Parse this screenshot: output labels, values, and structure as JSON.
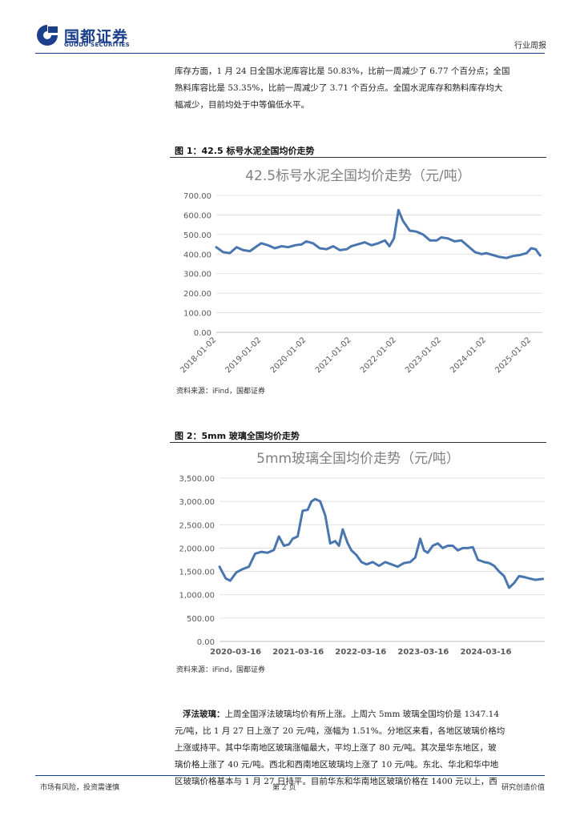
{
  "header": {
    "logo_cn": "国都证券",
    "logo_en": "GUODU SECURITIES",
    "doc_type": "行业周报"
  },
  "intro": {
    "lines": [
      "库存方面，1 月 24 日全国水泥库容比是 50.83%，比前一周减少了 6.77 个百分点；全国",
      "熟料库容比是 53.35%，比前一周减少了 3.71 个百分点。全国水泥库存和熟料库存均大",
      "幅减少，目前均处于中等偏低水平。"
    ]
  },
  "figure1": {
    "caption": "图 1：42.5 标号水泥全国均价走势",
    "source": "资料来源：iFind，国都证券"
  },
  "figure2": {
    "caption": "图 2：5mm 玻璃全国均价走势",
    "source": "资料来源：iFind，国都证券"
  },
  "glass_para": {
    "lead": "浮法玻璃：",
    "lines": [
      "上周全国浮法玻璃均价有所上涨。上周六 5mm 玻璃全国均价是 1347.14",
      "元/吨，比 1 月 27 日上涨了 20 元/吨，涨幅为 1.51%。分地区来看，各地区玻璃价格均",
      "上涨或持平。其中华南地区玻璃涨幅最大，平均上涨了 80 元/吨。其次是华东地区，玻",
      "璃价格上涨了 40 元/吨。西北和西南地区玻璃均上涨了 10 元/吨。东北、华北和华中地",
      "区玻璃价格基本与 1 月 27 日持平。目前华东和华南地区玻璃价格在 1400 元以上，西"
    ]
  },
  "footer": {
    "left": "市场有风险，投资需谨慎",
    "center": "第 2 页",
    "right": "研究创造价值"
  },
  "colors": {
    "brand": "#1c3f8c",
    "series": "#4a76b0"
  },
  "chart_data": [
    {
      "type": "line",
      "title": "42.5标号水泥全国均价走势（元/吨）",
      "ylim": [
        0,
        700
      ],
      "yticks": [
        "0.00",
        "100.00",
        "200.00",
        "300.00",
        "400.00",
        "500.00",
        "600.00",
        "700.00"
      ],
      "xticks": [
        "2018-01-02",
        "2019-01-02",
        "2020-01-02",
        "2021-01-02",
        "2022-01-02",
        "2023-01-02",
        "2024-01-02",
        "2025-01-02"
      ],
      "grid": true,
      "x": [
        2018.0,
        2018.15,
        2018.3,
        2018.45,
        2018.6,
        2018.75,
        2018.9,
        2019.0,
        2019.15,
        2019.3,
        2019.45,
        2019.6,
        2019.75,
        2019.9,
        2020.0,
        2020.15,
        2020.3,
        2020.45,
        2020.6,
        2020.75,
        2020.9,
        2021.0,
        2021.15,
        2021.3,
        2021.45,
        2021.6,
        2021.75,
        2021.85,
        2021.95,
        2022.05,
        2022.15,
        2022.3,
        2022.45,
        2022.6,
        2022.75,
        2022.9,
        2023.0,
        2023.15,
        2023.3,
        2023.45,
        2023.6,
        2023.75,
        2023.9,
        2024.0,
        2024.15,
        2024.3,
        2024.45,
        2024.6,
        2024.75,
        2024.9,
        2025.0,
        2025.1,
        2025.2
      ],
      "values": [
        435,
        410,
        405,
        435,
        420,
        415,
        440,
        455,
        445,
        430,
        440,
        435,
        445,
        450,
        465,
        455,
        430,
        425,
        440,
        420,
        425,
        440,
        450,
        460,
        445,
        455,
        470,
        440,
        480,
        625,
        570,
        520,
        515,
        500,
        470,
        470,
        485,
        480,
        465,
        470,
        440,
        410,
        400,
        405,
        395,
        385,
        380,
        390,
        395,
        405,
        430,
        425,
        393
      ]
    },
    {
      "type": "line",
      "title": "5mm玻璃全国均价走势（元/吨）",
      "ylim": [
        0,
        3500
      ],
      "yticks": [
        "0.00",
        "500.00",
        "1,000.00",
        "1,500.00",
        "2,000.00",
        "2,500.00",
        "3,000.00",
        "3,500.00"
      ],
      "xticks": [
        "2020-03-16",
        "2021-03-16",
        "2022-03-16",
        "2023-03-16",
        "2024-03-16"
      ],
      "grid": true,
      "x": [
        2019.95,
        2020.05,
        2020.12,
        2020.22,
        2020.32,
        2020.42,
        2020.52,
        2020.62,
        2020.72,
        2020.82,
        2020.9,
        2020.98,
        2021.06,
        2021.12,
        2021.2,
        2021.28,
        2021.36,
        2021.42,
        2021.48,
        2021.56,
        2021.64,
        2021.72,
        2021.8,
        2021.86,
        2021.92,
        2022.0,
        2022.06,
        2022.14,
        2022.22,
        2022.3,
        2022.4,
        2022.5,
        2022.6,
        2022.7,
        2022.8,
        2022.9,
        2023.0,
        2023.08,
        2023.16,
        2023.22,
        2023.28,
        2023.36,
        2023.44,
        2023.52,
        2023.6,
        2023.68,
        2023.76,
        2023.84,
        2023.92,
        2024.0,
        2024.08,
        2024.18,
        2024.26,
        2024.34,
        2024.42,
        2024.5,
        2024.58,
        2024.66,
        2024.74,
        2024.82,
        2024.9,
        2025.0,
        2025.12
      ],
      "values": [
        1600,
        1350,
        1300,
        1480,
        1550,
        1600,
        1880,
        1920,
        1900,
        1960,
        2250,
        2050,
        2080,
        2200,
        2250,
        2800,
        2820,
        3000,
        3050,
        3000,
        2700,
        2100,
        2150,
        2050,
        2400,
        2100,
        1950,
        1850,
        1700,
        1650,
        1700,
        1620,
        1700,
        1650,
        1600,
        1680,
        1700,
        1800,
        2200,
        1950,
        1900,
        2050,
        2100,
        2000,
        2050,
        2050,
        1950,
        2000,
        2000,
        2020,
        1750,
        1700,
        1680,
        1620,
        1500,
        1400,
        1150,
        1250,
        1400,
        1380,
        1350,
        1320,
        1340
      ]
    }
  ]
}
